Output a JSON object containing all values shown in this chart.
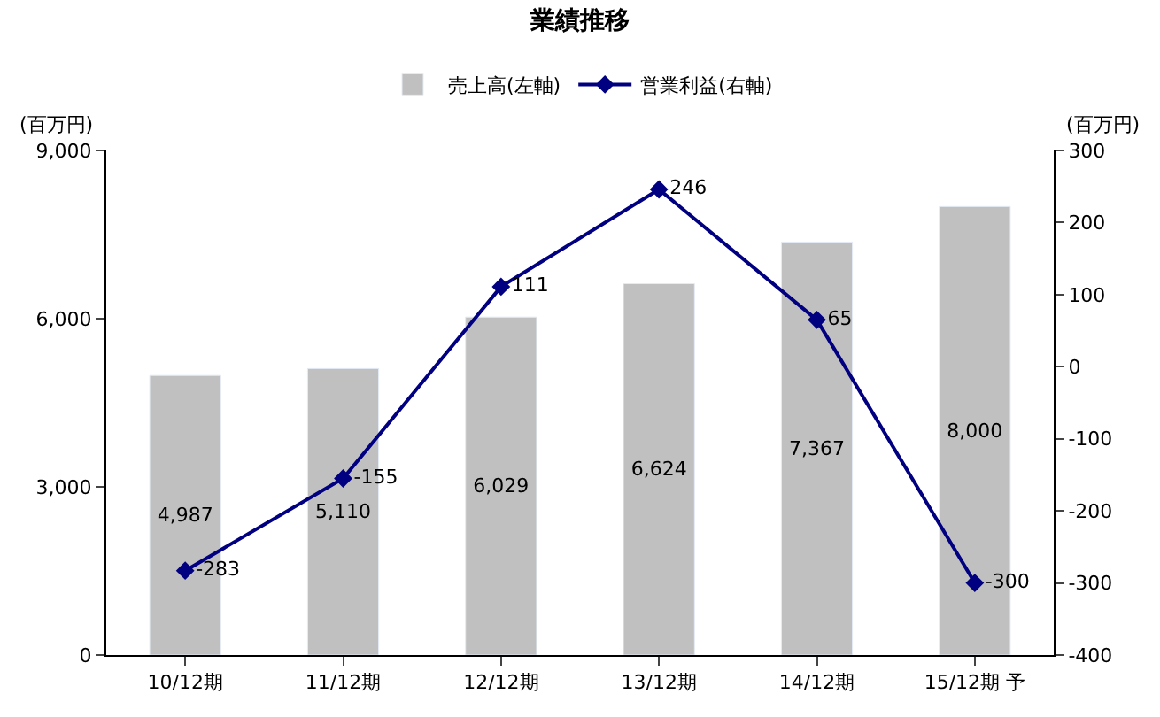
{
  "chart_data": {
    "type": "bar",
    "title": "業績推移",
    "ylabel": "(百万円)",
    "y2label": "(百万円)",
    "categories": [
      "10/12期",
      "11/12期",
      "12/12期",
      "13/12期",
      "14/12期",
      "15/12期 予"
    ],
    "series": [
      {
        "name": "売上高(左軸)",
        "color": "#c0c0c0",
        "values": [
          4987,
          5110,
          6029,
          6624,
          7367,
          8000
        ],
        "value_labels": [
          "4,987",
          "5,110",
          "6,029",
          "6,624",
          "7,367",
          "8,000"
        ]
      },
      {
        "name": "営業利益(右軸)",
        "type": "line",
        "axis": "y2",
        "color": "#000080",
        "marker": "diamond",
        "values": [
          -283,
          -155,
          111,
          246,
          65,
          -300
        ],
        "value_labels": [
          "-283",
          "-155",
          "111",
          "246",
          "65",
          "-300"
        ]
      }
    ],
    "ylim": [
      0,
      9000
    ],
    "yticks": [
      {
        "value": 0,
        "label": "0"
      },
      {
        "value": 3000,
        "label": "3,000"
      },
      {
        "value": 6000,
        "label": "6,000"
      },
      {
        "value": 9000,
        "label": "9,000"
      }
    ],
    "y2lim": [
      -400,
      300
    ],
    "y2ticks": [
      -400,
      -300,
      -200,
      -100,
      0,
      100,
      200,
      300
    ],
    "legend": "top"
  }
}
